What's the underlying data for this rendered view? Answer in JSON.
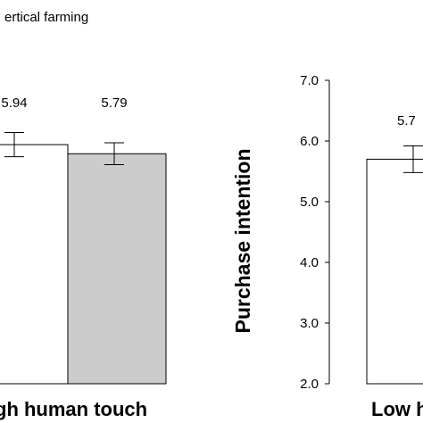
{
  "chart_data": [
    {
      "type": "bar",
      "title_partial": "ertical farming",
      "x_category_label_partial": "gh human touch",
      "bar_fill_colors": [
        "#ffffff",
        "#cccccc"
      ],
      "error_bars": true,
      "series": [
        {
          "values": [
            5.94,
            5.79
          ],
          "labels": [
            "5.94",
            "5.79"
          ],
          "error": [
            0.2,
            0.18
          ]
        }
      ]
    },
    {
      "type": "bar",
      "ylabel": "Purchase intention",
      "ylim": [
        2.0,
        7.0
      ],
      "ticks": [
        "7.0",
        "6.0",
        "5.0",
        "4.0",
        "3.0",
        "2.0"
      ],
      "x_category_label_partial": "Low h",
      "bar_fill_colors": [
        "#ffffff"
      ],
      "error_bars": true,
      "series": [
        {
          "values": [
            5.7
          ],
          "labels": [
            "5.7"
          ],
          "error": [
            0.22
          ]
        }
      ]
    }
  ]
}
